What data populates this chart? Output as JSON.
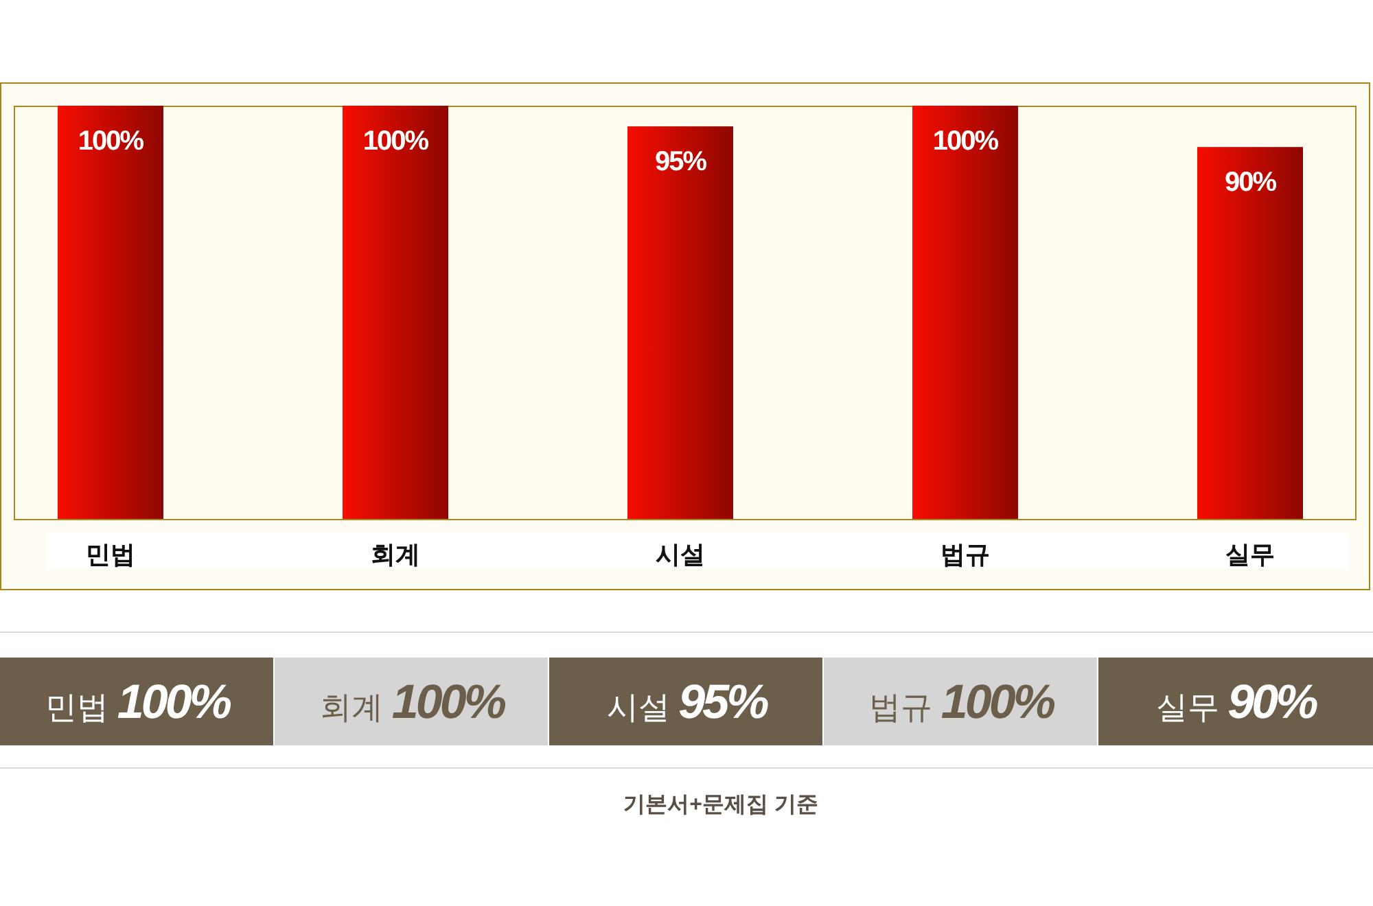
{
  "chart_data": {
    "type": "bar",
    "categories": [
      "민법",
      "회계",
      "시설",
      "법규",
      "실무"
    ],
    "values": [
      100,
      100,
      95,
      100,
      90
    ],
    "value_labels": [
      "100%",
      "100%",
      "95%",
      "100%",
      "90%"
    ],
    "color": "#c20a00",
    "annotations": [
      "기본서+문제집 기준"
    ]
  }
}
